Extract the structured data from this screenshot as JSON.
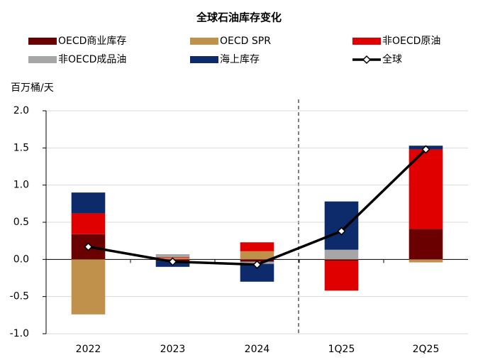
{
  "chart_data": {
    "type": "bar",
    "stacked": true,
    "title": "全球石油库存变化",
    "y_label": "百万桶/天",
    "categories": [
      "2022",
      "2023",
      "2024",
      "1Q25",
      "2Q25"
    ],
    "series": [
      {
        "name": "OECD商业库存",
        "color": "#6b0000",
        "values": [
          0.34,
          -0.02,
          -0.03,
          -0.02,
          0.41
        ]
      },
      {
        "name": "OECD SPR",
        "color": "#c0914b",
        "values": [
          -0.74,
          0.02,
          0.11,
          0,
          -0.04
        ]
      },
      {
        "name": "非OECD原油",
        "color": "#e00000",
        "values": [
          0.28,
          0.01,
          0.12,
          -0.4,
          1.07
        ]
      },
      {
        "name": "非OECD成品油",
        "color": "#a6a6a6",
        "values": [
          0,
          0.04,
          -0.03,
          0.13,
          0
        ]
      },
      {
        "name": "海上库存",
        "color": "#0d2a6b",
        "values": [
          0.28,
          -0.08,
          -0.24,
          0.65,
          0.05
        ]
      },
      {
        "name": "全球",
        "type": "line",
        "color": "#000000",
        "values": [
          0.17,
          -0.03,
          -0.07,
          0.38,
          1.48
        ]
      }
    ],
    "ylim": [
      -1,
      2
    ],
    "yticks": [
      {
        "value": -1,
        "label": "-1.0"
      },
      {
        "value": -0.5,
        "label": "-0.5"
      },
      {
        "value": 0,
        "label": "0.0"
      },
      {
        "value": 0.5,
        "label": "0.5"
      },
      {
        "value": 1,
        "label": "1.0"
      },
      {
        "value": 1.5,
        "label": "1.5"
      },
      {
        "value": 2,
        "label": "2.0"
      }
    ],
    "grid": true
  }
}
